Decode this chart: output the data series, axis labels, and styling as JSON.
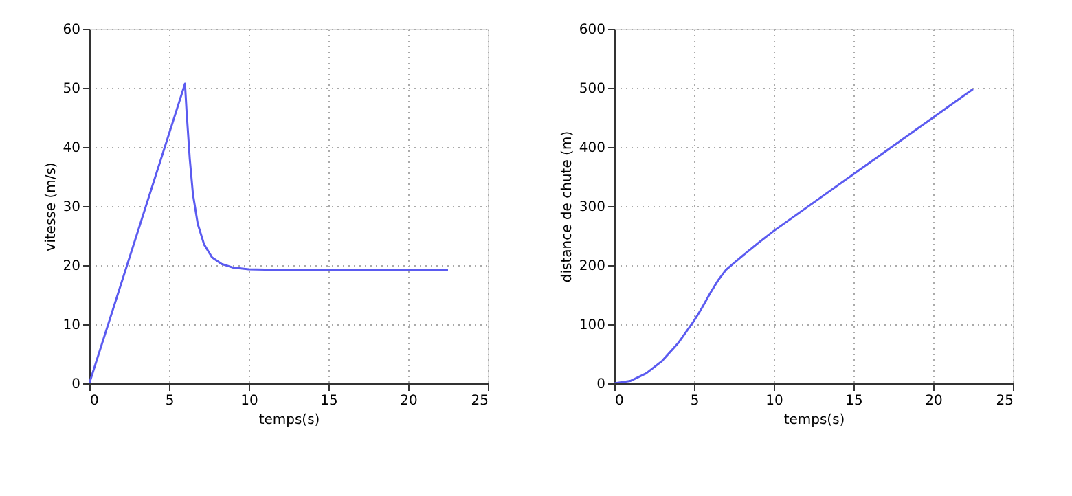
{
  "chart_data": [
    {
      "type": "line",
      "xlabel": "temps(s)",
      "ylabel": "vitesse (m/s)",
      "xlim": [
        0,
        25
      ],
      "ylim": [
        0,
        60
      ],
      "xticks": [
        0,
        5,
        10,
        15,
        20,
        25
      ],
      "yticks": [
        0,
        10,
        20,
        30,
        40,
        50,
        60
      ],
      "grid": true,
      "marker": "none",
      "line_style": "solid",
      "series": [
        {
          "color": "#5b5bf0",
          "x": [
            0,
            6.0,
            6.1,
            6.3,
            6.5,
            6.8,
            7.2,
            7.7,
            8.3,
            9,
            10,
            12,
            15,
            22.5
          ],
          "values": [
            0,
            50.7,
            46,
            38,
            32,
            27,
            23.5,
            21.3,
            20.2,
            19.6,
            19.3,
            19.2,
            19.2,
            19.2
          ]
        }
      ]
    },
    {
      "type": "line",
      "xlabel": "temps(s)",
      "ylabel": "distance de chute (m)",
      "xlim": [
        0,
        25
      ],
      "ylim": [
        0,
        600
      ],
      "xticks": [
        0,
        5,
        10,
        15,
        20,
        25
      ],
      "yticks": [
        0,
        100,
        200,
        300,
        400,
        500,
        600
      ],
      "grid": true,
      "marker": "none",
      "line_style": "solid",
      "series": [
        {
          "color": "#5b5bf0",
          "x": [
            0,
            1,
            2,
            3,
            4,
            5,
            5.5,
            6,
            6.5,
            7,
            8,
            9,
            10,
            15,
            20,
            22.5
          ],
          "values": [
            0,
            4,
            17,
            38,
            68,
            106,
            128,
            152,
            174,
            192,
            215,
            237,
            258,
            354,
            450,
            498
          ]
        }
      ]
    }
  ]
}
